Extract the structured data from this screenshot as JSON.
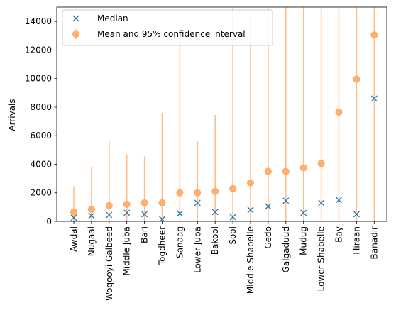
{
  "chart_data": {
    "type": "scatter",
    "title": "",
    "xlabel": "",
    "ylabel": "Arrivals",
    "ylim": [
      0,
      15000
    ],
    "yticks": [
      0,
      2000,
      4000,
      6000,
      8000,
      10000,
      12000,
      14000
    ],
    "grid": false,
    "legend_position": "top-left",
    "categories": [
      "Awdal",
      "Nugaal",
      "Woqooyi Galbeed",
      "Middle Juba",
      "Bari",
      "Togdheer",
      "Sanaag",
      "Lower Juba",
      "Bakool",
      "Sool",
      "Middle Shabelle",
      "Gedo",
      "Galgaduud",
      "Mudug",
      "Lower Shabelle",
      "Bay",
      "Hiraan",
      "Banadir"
    ],
    "series": [
      {
        "name": "Median",
        "marker": "x",
        "color": "#1f77b4",
        "values": [
          250,
          400,
          450,
          600,
          500,
          150,
          550,
          1300,
          650,
          300,
          800,
          1050,
          1450,
          600,
          1300,
          1500,
          500,
          8600
        ]
      },
      {
        "name": "Mean and 95% confidence interval",
        "marker": "o",
        "color": "#ff7f0e",
        "values": [
          650,
          850,
          1100,
          1200,
          1300,
          1300,
          2000,
          2000,
          2100,
          2300,
          2700,
          3500,
          3500,
          3750,
          4050,
          7650,
          9950,
          13050
        ],
        "ci_lower": [
          0,
          0,
          0,
          0,
          0,
          0,
          0,
          0,
          0,
          0,
          0,
          0,
          0,
          0,
          0,
          0,
          0,
          0
        ],
        "ci_upper": [
          2450,
          3800,
          5700,
          4700,
          4550,
          7600,
          13200,
          5600,
          7450,
          15000,
          14500,
          15000,
          15000,
          15000,
          15000,
          15000,
          15000,
          15000
        ]
      }
    ]
  }
}
